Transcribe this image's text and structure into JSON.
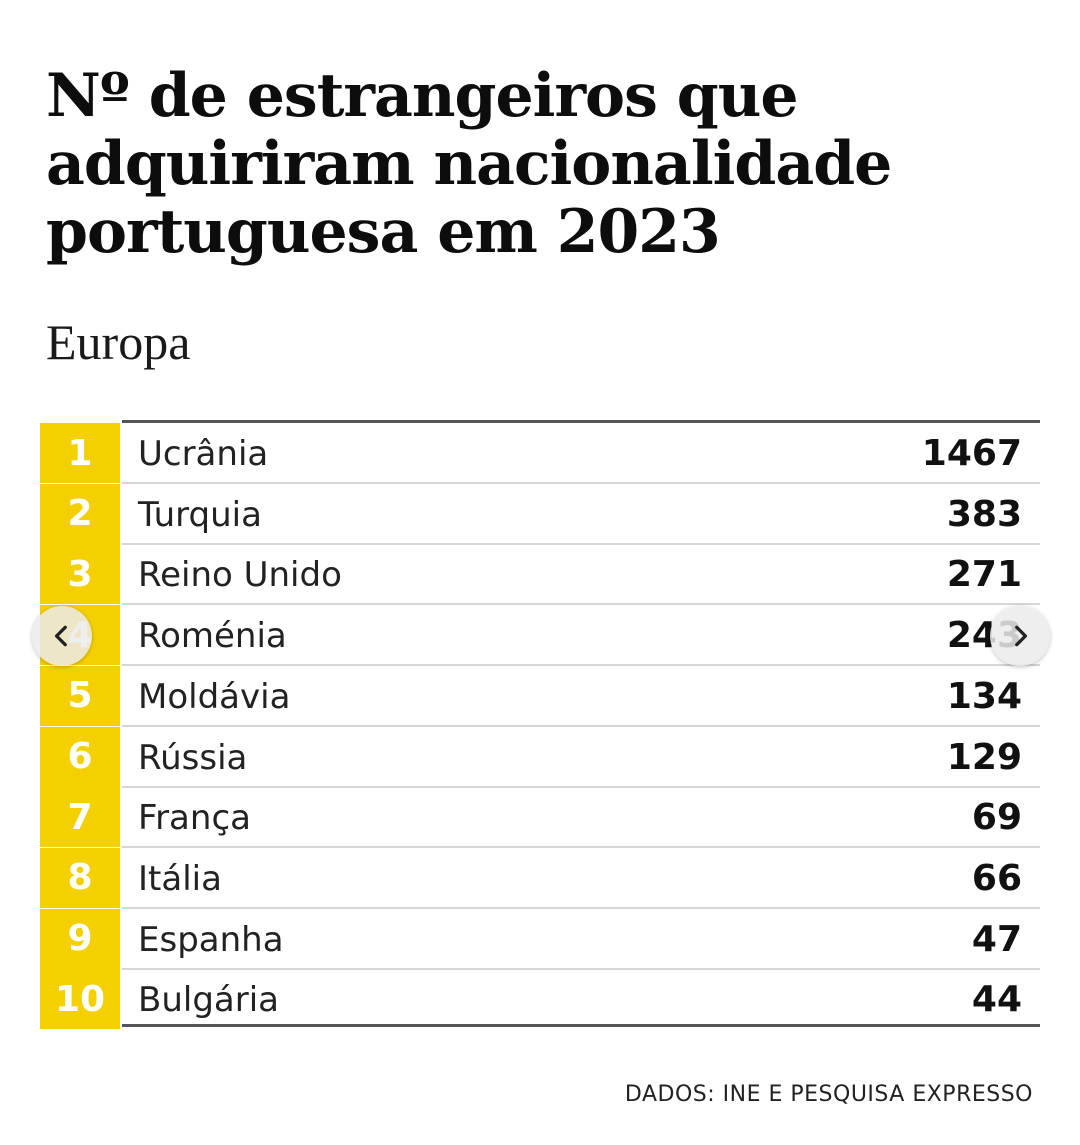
{
  "chart_data": {
    "type": "table",
    "title": "Nº de estrangeiros que adquiriram nacionalidade portuguesa em 2023",
    "subtitle": "Europa",
    "columns": [
      "",
      "",
      ""
    ],
    "rows": [
      {
        "rank": "1",
        "country": "Ucrânia",
        "value": 1467
      },
      {
        "rank": "2",
        "country": "Turquia",
        "value": 383
      },
      {
        "rank": "3",
        "country": "Reino Unido",
        "value": 271
      },
      {
        "rank": "4",
        "country": "Roménia",
        "value": 243
      },
      {
        "rank": "5",
        "country": "Moldávia",
        "value": 134
      },
      {
        "rank": "6",
        "country": "Rússia",
        "value": 129
      },
      {
        "rank": "7",
        "country": "França",
        "value": 69
      },
      {
        "rank": "8",
        "country": "Itália",
        "value": 66
      },
      {
        "rank": "9",
        "country": "Espanha",
        "value": 47
      },
      {
        "rank": "10",
        "country": "Bulgária",
        "value": 44
      }
    ],
    "source": "DADOS: INE E PESQUISA EXPRESSO",
    "colors": {
      "rank_fill": "#f5d000",
      "rank_text": "#ffffff",
      "rule": "#555555"
    }
  },
  "navigation": {
    "prev_icon": "chevron-left-icon",
    "next_icon": "chevron-right-icon"
  }
}
